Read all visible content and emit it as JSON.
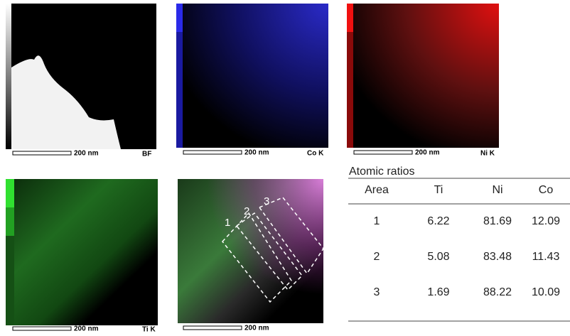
{
  "panels": [
    {
      "label": "BF",
      "scale": "200 nm"
    },
    {
      "label": "Co K",
      "scale": "200 nm"
    },
    {
      "label": "Ni K",
      "scale": "200 nm"
    },
    {
      "label": "Ti K",
      "scale": "200 nm"
    },
    {
      "scale": "200 nm"
    }
  ],
  "regions": [
    "1",
    "2",
    "3"
  ],
  "table": {
    "title": "Atomic ratios",
    "header": [
      "Area",
      "Ti",
      "Ni",
      "Co"
    ],
    "rows": [
      [
        1,
        6.22,
        81.69,
        12.09
      ],
      [
        2,
        5.08,
        83.48,
        11.43
      ],
      [
        3,
        1.69,
        88.22,
        10.09
      ]
    ]
  }
}
